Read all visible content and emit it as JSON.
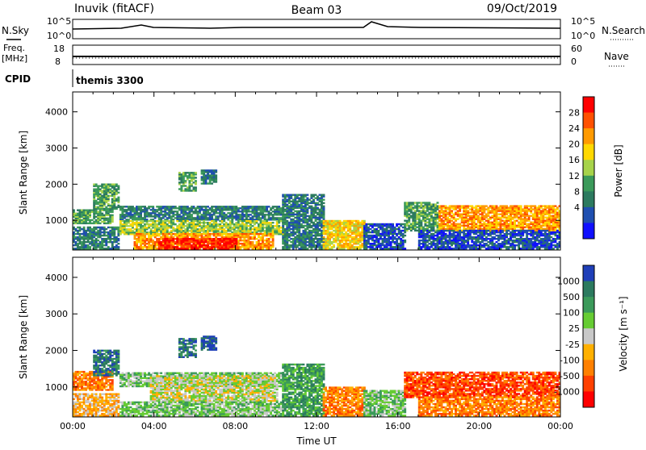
{
  "header": {
    "station": "Inuvik (fitACF)",
    "beam": "Beam 03",
    "date": "09/Oct/2019"
  },
  "top_panels": {
    "nsky_label": "N.Sky",
    "nsky_ticks": [
      "10^5",
      "10^0"
    ],
    "nsearch_label": "N.Search",
    "nsearch_ticks": [
      "10^5",
      "10^0"
    ],
    "freq_label": "Freq.",
    "freq_unit": "[MHz]",
    "freq_ticks": [
      "18",
      "8"
    ],
    "nave_label": "Nave",
    "nave_ticks": [
      "60",
      "0"
    ],
    "cpid_label": "CPID",
    "cpid_value": "themis 3300"
  },
  "chart_data": [
    {
      "type": "heatmap",
      "name": "power",
      "ylabel": "Slant Range [km]",
      "xlabel": "",
      "y_ticks": [
        "1000",
        "2000",
        "3000",
        "4000"
      ],
      "ylim": [
        180,
        4550
      ],
      "xlim_hours": [
        0,
        24
      ],
      "colorbar_label": "Power [dB]",
      "colorbar_ticks": [
        "28",
        "24",
        "20",
        "16",
        "12",
        "8",
        "4"
      ],
      "colorbar_colors": [
        "#ff0000",
        "#ff5000",
        "#ff9a00",
        "#ffd800",
        "#a7d34a",
        "#3b9a5a",
        "#2c7a5f",
        "#1f4fb0",
        "#1010ff"
      ],
      "bands": [
        {
          "start": 0.0,
          "end": 2.0,
          "lo": 900,
          "hi": 1300,
          "level": 3
        },
        {
          "start": 0.0,
          "end": 2.3,
          "lo": 200,
          "hi": 800,
          "level": 2
        },
        {
          "start": 1.0,
          "end": 2.3,
          "lo": 1300,
          "hi": 2000,
          "level": 3
        },
        {
          "start": 2.3,
          "end": 10.3,
          "lo": 1000,
          "hi": 1400,
          "level": 2
        },
        {
          "start": 2.3,
          "end": 10.3,
          "lo": 600,
          "hi": 1000,
          "level": 4
        },
        {
          "start": 3.0,
          "end": 9.8,
          "lo": 200,
          "hi": 650,
          "level": 6
        },
        {
          "start": 4.2,
          "end": 8.0,
          "lo": 200,
          "hi": 500,
          "level": 8
        },
        {
          "start": 10.3,
          "end": 12.3,
          "lo": 200,
          "hi": 1700,
          "level": 2
        },
        {
          "start": 12.3,
          "end": 14.3,
          "lo": 200,
          "hi": 1000,
          "level": 5
        },
        {
          "start": 14.3,
          "end": 16.3,
          "lo": 200,
          "hi": 900,
          "level": 1
        },
        {
          "start": 16.3,
          "end": 18.0,
          "lo": 700,
          "hi": 1500,
          "level": 3
        },
        {
          "start": 18.0,
          "end": 24.0,
          "lo": 700,
          "hi": 1400,
          "level": 6
        },
        {
          "start": 17.0,
          "end": 24.0,
          "lo": 200,
          "hi": 700,
          "level": 1
        },
        {
          "start": 5.2,
          "end": 6.0,
          "lo": 1800,
          "hi": 2300,
          "level": 3
        },
        {
          "start": 6.3,
          "end": 7.0,
          "lo": 2000,
          "hi": 2400,
          "level": 2
        }
      ]
    },
    {
      "type": "heatmap",
      "name": "velocity",
      "ylabel": "Slant Range [km]",
      "xlabel": "Time UT",
      "y_ticks": [
        "1000",
        "2000",
        "3000",
        "4000"
      ],
      "ylim": [
        180,
        4550
      ],
      "x_ticks": [
        "00:00",
        "04:00",
        "08:00",
        "12:00",
        "16:00",
        "20:00",
        "00:00"
      ],
      "xlim_hours": [
        0,
        24
      ],
      "colorbar_label": "Velocity [m s⁻¹]",
      "colorbar_ticks": [
        "1000",
        "500",
        "100",
        "25",
        "-25",
        "-100",
        "-500",
        "-1000"
      ],
      "colorbar_colors": [
        "#1f3fb8",
        "#2c7a5f",
        "#3b9a5a",
        "#66cc33",
        "#c8c8c8",
        "#ffb000",
        "#ff8000",
        "#ff4000",
        "#ff0000"
      ],
      "bands": [
        {
          "start": 0.0,
          "end": 2.0,
          "lo": 900,
          "hi": 1400,
          "level": 6
        },
        {
          "start": 0.0,
          "end": 2.3,
          "lo": 200,
          "hi": 800,
          "level": 5
        },
        {
          "start": 1.0,
          "end": 2.3,
          "lo": 1300,
          "hi": 2000,
          "level": 1
        },
        {
          "start": 2.3,
          "end": 10.3,
          "lo": 1000,
          "hi": 1400,
          "level": 3
        },
        {
          "start": 3.8,
          "end": 10.0,
          "lo": 600,
          "hi": 1300,
          "level": 4
        },
        {
          "start": 2.3,
          "end": 10.3,
          "lo": 200,
          "hi": 600,
          "level": 3
        },
        {
          "start": 10.3,
          "end": 12.3,
          "lo": 200,
          "hi": 1600,
          "level": 2
        },
        {
          "start": 12.3,
          "end": 14.3,
          "lo": 200,
          "hi": 1000,
          "level": 6
        },
        {
          "start": 14.3,
          "end": 16.3,
          "lo": 200,
          "hi": 900,
          "level": 3
        },
        {
          "start": 16.3,
          "end": 24.0,
          "lo": 700,
          "hi": 1400,
          "level": 7
        },
        {
          "start": 17.0,
          "end": 24.0,
          "lo": 200,
          "hi": 700,
          "level": 6
        },
        {
          "start": 5.2,
          "end": 6.0,
          "lo": 1800,
          "hi": 2300,
          "level": 1
        },
        {
          "start": 6.3,
          "end": 7.0,
          "lo": 2000,
          "hi": 2400,
          "level": 0
        }
      ]
    }
  ]
}
